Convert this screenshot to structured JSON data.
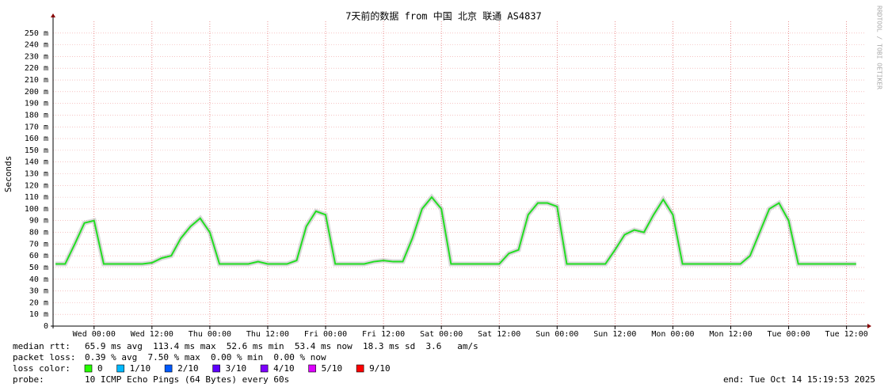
{
  "chart_data": {
    "type": "line",
    "title": "7天前的数据 from 中国 北京 联通 AS4837",
    "y_label": "Seconds",
    "side_text": "RRDTOOL / TOBI OETIKER",
    "x": [
      -8,
      -6,
      -4,
      -2,
      0,
      2,
      4,
      6,
      8,
      10,
      12,
      14,
      16,
      18,
      20,
      22,
      24,
      26,
      28,
      30,
      32,
      34,
      36,
      38,
      40,
      42,
      44,
      46,
      48,
      50,
      52,
      54,
      56,
      58,
      60,
      62,
      64,
      66,
      68,
      70,
      72,
      74,
      76,
      78,
      80,
      82,
      84,
      86,
      88,
      90,
      92,
      94,
      96,
      98,
      100,
      102,
      104,
      106,
      108,
      110,
      112,
      114,
      116,
      118,
      120,
      122,
      124,
      126,
      128,
      130,
      132,
      134,
      136,
      138,
      140,
      142,
      144,
      146,
      148,
      150,
      152,
      154,
      156,
      158
    ],
    "series": [
      {
        "name": "median rtt",
        "color": "#22dd22",
        "values": [
          53,
          53,
          70,
          88,
          90,
          53,
          53,
          53,
          53,
          53,
          54,
          58,
          60,
          75,
          85,
          92,
          80,
          53,
          53,
          53,
          53,
          55,
          53,
          53,
          53,
          56,
          85,
          98,
          95,
          53,
          53,
          53,
          53,
          55,
          56,
          55,
          55,
          75,
          100,
          110,
          100,
          53,
          53,
          53,
          53,
          53,
          53,
          62,
          65,
          95,
          105,
          105,
          102,
          53,
          53,
          53,
          53,
          53,
          65,
          78,
          82,
          80,
          95,
          108,
          95,
          53,
          53,
          53,
          53,
          53,
          53,
          53,
          60,
          80,
          100,
          105,
          90,
          53,
          53,
          53,
          53,
          53,
          53,
          53
        ]
      }
    ],
    "xlim": [
      -8.5,
      160
    ],
    "xticks": [
      {
        "value": 0,
        "label": "Wed 00:00"
      },
      {
        "value": 12,
        "label": "Wed 12:00"
      },
      {
        "value": 24,
        "label": "Thu 00:00"
      },
      {
        "value": 36,
        "label": "Thu 12:00"
      },
      {
        "value": 48,
        "label": "Fri 00:00"
      },
      {
        "value": 60,
        "label": "Fri 12:00"
      },
      {
        "value": 72,
        "label": "Sat 00:00"
      },
      {
        "value": 84,
        "label": "Sat 12:00"
      },
      {
        "value": 96,
        "label": "Sun 00:00"
      },
      {
        "value": 108,
        "label": "Sun 12:00"
      },
      {
        "value": 120,
        "label": "Mon 00:00"
      },
      {
        "value": 132,
        "label": "Mon 12:00"
      },
      {
        "value": 144,
        "label": "Tue 00:00"
      },
      {
        "value": 156,
        "label": "Tue 12:00"
      }
    ],
    "ylim": [
      0,
      260
    ],
    "yticks": [
      0,
      {
        "value": 10,
        "label": "10 m"
      },
      {
        "value": 20,
        "label": "20 m"
      },
      {
        "value": 30,
        "label": "30 m"
      },
      {
        "value": 40,
        "label": "40 m"
      },
      {
        "value": 50,
        "label": "50 m"
      },
      {
        "value": 60,
        "label": "60 m"
      },
      {
        "value": 70,
        "label": "70 m"
      },
      {
        "value": 80,
        "label": "80 m"
      },
      {
        "value": 90,
        "label": "90 m"
      },
      {
        "value": 100,
        "label": "100 m"
      },
      {
        "value": 110,
        "label": "110 m"
      },
      {
        "value": 120,
        "label": "120 m"
      },
      {
        "value": 130,
        "label": "130 m"
      },
      {
        "value": 140,
        "label": "140 m"
      },
      {
        "value": 150,
        "label": "150 m"
      },
      {
        "value": 160,
        "label": "160 m"
      },
      {
        "value": 170,
        "label": "170 m"
      },
      {
        "value": 180,
        "label": "180 m"
      },
      {
        "value": 190,
        "label": "190 m"
      },
      {
        "value": 200,
        "label": "200 m"
      },
      {
        "value": 210,
        "label": "210 m"
      },
      {
        "value": 220,
        "label": "220 m"
      },
      {
        "value": 230,
        "label": "230 m"
      },
      {
        "value": 240,
        "label": "240 m"
      },
      {
        "value": 250,
        "label": "250 m"
      }
    ],
    "grid": true,
    "stats": [
      {
        "label": "median rtt:",
        "text": "65.9 ms avg  113.4 ms max  52.6 ms min  53.4 ms now  18.3 ms sd  3.6   am/s"
      },
      {
        "label": "packet loss:",
        "text": "0.39 % avg  7.50 % max  0.00 % min  0.00 % now"
      }
    ],
    "loss_label": "loss color:",
    "loss_colors": [
      {
        "name": "0",
        "color": "#26ff00"
      },
      {
        "name": "1/10",
        "color": "#00b8ff"
      },
      {
        "name": "2/10",
        "color": "#0059ff"
      },
      {
        "name": "3/10",
        "color": "#5e00ff"
      },
      {
        "name": "4/10",
        "color": "#7e00ff"
      },
      {
        "name": "5/10",
        "color": "#dd00ff"
      },
      {
        "name": "9/10",
        "color": "#ff0000"
      }
    ],
    "probe_label": "probe:",
    "probe_text": "10 ICMP Echo Pings (64 Bytes) every 60s",
    "end_text": "end: Tue Oct 14 15:19:53 2025"
  }
}
